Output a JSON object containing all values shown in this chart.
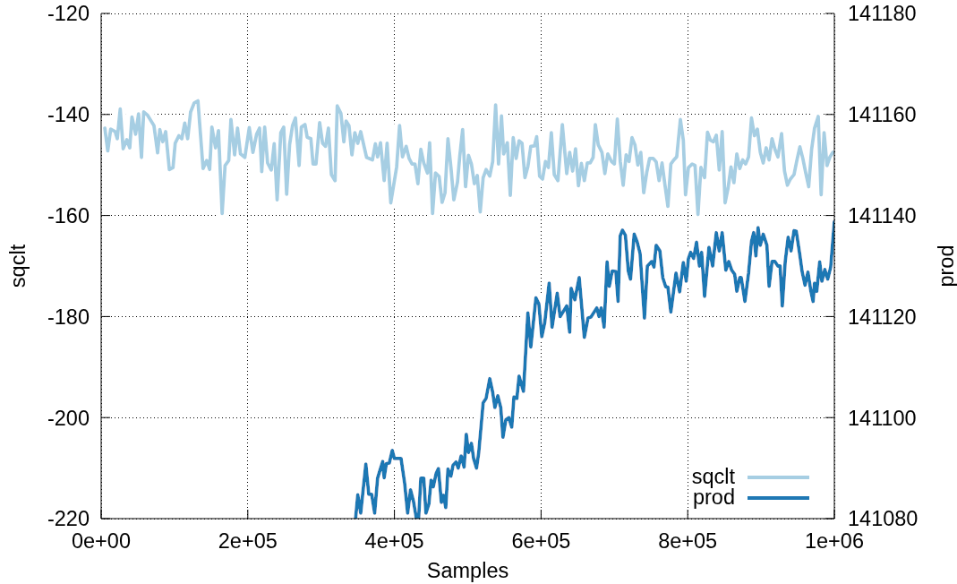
{
  "chart_data": {
    "type": "line",
    "xlabel": "Samples",
    "ylabel": "sqclt",
    "y2label": "prod",
    "xlim": [
      0,
      1000000
    ],
    "xticks": [
      {
        "value": 0,
        "label": "0e+00"
      },
      {
        "value": 200000,
        "label": "2e+05"
      },
      {
        "value": 400000,
        "label": "4e+05"
      },
      {
        "value": 600000,
        "label": "6e+05"
      },
      {
        "value": 800000,
        "label": "8e+05"
      },
      {
        "value": 1000000,
        "label": "1e+06"
      }
    ],
    "ylim": [
      -220,
      -120
    ],
    "yticks": [
      -220,
      -200,
      -180,
      -160,
      -140,
      -120
    ],
    "y2lim": [
      141080,
      141180
    ],
    "y2ticks": [
      141080,
      141100,
      141120,
      141140,
      141160,
      141180
    ],
    "grid": true,
    "legend": "bottom right",
    "marker": "none",
    "line_style": "solid",
    "series": [
      {
        "name": "sqclt",
        "color": "#a6cee3",
        "x": [
          5000,
          9000,
          13000,
          19000,
          22000,
          26000,
          30000,
          35000,
          39000,
          42000,
          47000,
          51000,
          55000,
          58000,
          63000,
          72000,
          77000,
          80000,
          84000,
          88000,
          93000,
          98000,
          101000,
          106000,
          110000,
          114000,
          118000,
          122000,
          127000,
          132000,
          139000,
          144000,
          148000,
          151000,
          156000,
          160000,
          165000,
          169000,
          174000,
          177000,
          182000,
          186000,
          190000,
          196000,
          202000,
          207000,
          212000,
          216000,
          219000,
          223000,
          227000,
          232000,
          236000,
          240000,
          245000,
          249000,
          253000,
          257000,
          261000,
          265000,
          270000,
          273000,
          278000,
          281000,
          286000,
          289000,
          293000,
          298000,
          302000,
          306000,
          310000,
          314000,
          319000,
          322000,
          327000,
          331000,
          334000,
          338000,
          342000,
          346000,
          350000,
          354000,
          362000,
          370000,
          374000,
          377000,
          381000,
          386000,
          390000,
          395000,
          403000,
          407000,
          411000,
          416000,
          420000,
          424000,
          428000,
          432000,
          436000,
          440000,
          445000,
          448000,
          452000,
          456000,
          461000,
          465000,
          469000,
          473000,
          477000,
          481000,
          486000,
          489000,
          493000,
          497000,
          501000,
          505000,
          509000,
          513000,
          517000,
          521000,
          525000,
          530000,
          534000,
          538000,
          542000,
          546000,
          549000,
          554000,
          558000,
          562000,
          566000,
          570000,
          574000,
          578000,
          582000,
          586000,
          591000,
          594000,
          598000,
          602000,
          606000,
          610000,
          614000,
          618000,
          623000,
          629000,
          635000,
          639000,
          643000,
          647000,
          651000,
          655000,
          659000,
          663000,
          667000,
          671000,
          674000,
          678000,
          683000,
          687000,
          691000,
          696000,
          700000,
          704000,
          708000,
          712000,
          716000,
          720000,
          724000,
          728000,
          732000,
          736000,
          740000,
          744000,
          748000,
          753000,
          757000,
          761000,
          765000,
          769000,
          773000,
          777000,
          781000,
          785000,
          790000,
          794000,
          797000,
          801000,
          806000,
          810000,
          814000,
          818000,
          823000,
          827000,
          831000,
          835000,
          839000,
          843000,
          847000,
          851000,
          855000,
          859000,
          863000,
          867000,
          871000,
          875000,
          879000,
          883000,
          887000,
          891000,
          895000,
          899000,
          903000,
          907000,
          911000,
          915000,
          919000,
          923000,
          928000,
          932000,
          936000,
          940000,
          945000,
          949000,
          953000,
          957000,
          961000,
          965000,
          969000,
          973000,
          978000,
          982000,
          986000,
          990000,
          994000,
          998000
        ],
        "values": [
          -142.7,
          -147.2,
          -142.9,
          -143.4,
          -144.8,
          -138.9,
          -146.8,
          -145,
          -146.6,
          -140.5,
          -143.9,
          -139.9,
          -148.5,
          -139.5,
          -140.1,
          -142.2,
          -147.6,
          -143,
          -145.4,
          -143.4,
          -150.9,
          -150.5,
          -145.7,
          -144.2,
          -144.8,
          -141.7,
          -144.8,
          -139.5,
          -137.7,
          -137.3,
          -150.7,
          -149.1,
          -150.9,
          -142.5,
          -146.6,
          -143.2,
          -159.6,
          -150.1,
          -149.1,
          -141,
          -148,
          -142.7,
          -147.8,
          -148.5,
          -142.6,
          -147.5,
          -143.9,
          -142.7,
          -151.3,
          -142.5,
          -149.6,
          -151,
          -145.8,
          -156.9,
          -143.6,
          -142.5,
          -155.8,
          -146,
          -142.2,
          -140.7,
          -150.1,
          -142.5,
          -142,
          -144.5,
          -144.8,
          -149.8,
          -149.8,
          -141.6,
          -145.7,
          -146.3,
          -142.7,
          -151.9,
          -153.1,
          -138.3,
          -139.8,
          -145.4,
          -141.3,
          -142.2,
          -148,
          -143.6,
          -145.7,
          -143.4,
          -148.5,
          -149,
          -145.8,
          -148.4,
          -145.6,
          -153.1,
          -145.7,
          -157.5,
          -150.4,
          -142.2,
          -148.4,
          -146.3,
          -148.7,
          -149.8,
          -149.8,
          -153.7,
          -146.9,
          -149.6,
          -151.6,
          -145.6,
          -159.6,
          -151.6,
          -152.3,
          -157.4,
          -155.5,
          -144.8,
          -150.4,
          -156.9,
          -153.4,
          -148.4,
          -143,
          -154.3,
          -148.1,
          -149.8,
          -153.7,
          -152.1,
          -159.3,
          -152.5,
          -150.9,
          -152.2,
          -149.3,
          -138.1,
          -149.8,
          -140.3,
          -147.8,
          -145.6,
          -156,
          -144.6,
          -148.7,
          -145.2,
          -145.7,
          -152.5,
          -150.3,
          -146.3,
          -146.2,
          -144.4,
          -152.2,
          -152.8,
          -149.3,
          -150.5,
          -143.6,
          -151.9,
          -153.1,
          -142,
          -151.7,
          -147.5,
          -151.2,
          -146.8,
          -154.1,
          -149.7,
          -153.1,
          -149.6,
          -149.6,
          -148.5,
          -142,
          -146,
          -147.5,
          -151.7,
          -147.8,
          -149.3,
          -149.8,
          -140.9,
          -149.3,
          -154,
          -148,
          -149.3,
          -144.6,
          -146,
          -150,
          -147.5,
          -155.5,
          -151.6,
          -148.7,
          -148.7,
          -149.4,
          -153.1,
          -149.6,
          -154,
          -158.2,
          -149.8,
          -149,
          -148.4,
          -141,
          -145.1,
          -155.9,
          -150.5,
          -149.8,
          -150.1,
          -159.8,
          -150.5,
          -152.5,
          -143.5,
          -145.1,
          -145.4,
          -144.1,
          -151,
          -143.4,
          -157.5,
          -154.6,
          -150.4,
          -153.5,
          -147.8,
          -150.7,
          -149,
          -149.8,
          -148.4,
          -140.7,
          -144.2,
          -142.9,
          -147.5,
          -149.6,
          -146.6,
          -149,
          -144.8,
          -146.9,
          -148.4,
          -143.8,
          -151.2,
          -154,
          -152.8,
          -151.9,
          -149,
          -146.4,
          -148.7,
          -151.6,
          -154.3,
          -146.9,
          -142.7,
          -140.4,
          -155.9,
          -143.6,
          -150.1,
          -148.4,
          -147.5
        ]
      },
      {
        "name": "prod",
        "color": "#1f78b4",
        "axis": "y2",
        "x": [
          347000,
          350000,
          354000,
          361000,
          365000,
          369000,
          373000,
          377000,
          381000,
          384000,
          386000,
          389000,
          393000,
          397000,
          400000,
          405000,
          409000,
          414000,
          418000,
          422000,
          426000,
          430000,
          433000,
          436000,
          440000,
          443000,
          447000,
          450000,
          453000,
          457000,
          460000,
          464000,
          467000,
          470000,
          473000,
          477000,
          480000,
          484000,
          487000,
          491000,
          495000,
          498000,
          501000,
          505000,
          508000,
          512000,
          515000,
          521000,
          525000,
          530000,
          534000,
          537000,
          541000,
          545000,
          548000,
          552000,
          556000,
          560000,
          563000,
          567000,
          570000,
          576000,
          582000,
          586000,
          593000,
          597000,
          601000,
          605000,
          611000,
          615000,
          622000,
          626000,
          635000,
          639000,
          641000,
          646000,
          652000,
          659000,
          664000,
          668000,
          676000,
          679000,
          682000,
          686000,
          690000,
          693000,
          697000,
          702000,
          705000,
          708000,
          711000,
          715000,
          719000,
          722000,
          727000,
          731000,
          735000,
          741000,
          745000,
          751000,
          754000,
          757000,
          762000,
          766000,
          770000,
          773000,
          777000,
          784000,
          789000,
          794000,
          798000,
          801000,
          804000,
          808000,
          812000,
          816000,
          819000,
          823000,
          829000,
          834000,
          839000,
          843000,
          847000,
          852000,
          856000,
          860000,
          864000,
          867000,
          871000,
          873000,
          878000,
          883000,
          887000,
          890000,
          893000,
          896000,
          899000,
          903000,
          908000,
          911000,
          915000,
          919000,
          923000,
          926000,
          929000,
          933000,
          937000,
          941000,
          945000,
          948000,
          953000,
          956000,
          960000,
          964000,
          968000,
          971000,
          973000,
          976000,
          980000,
          983000,
          987000,
          991000,
          995000,
          1000000
        ],
        "values": [
          141080,
          141084.7,
          141081.1,
          141090.8,
          141084.8,
          141084.8,
          141081.1,
          141088,
          141089.9,
          141091.3,
          141088.1,
          141090.9,
          141091,
          141093.5,
          141091.9,
          141091.9,
          141091.9,
          141086.9,
          141081.1,
          141085.7,
          141083.4,
          141080,
          141080,
          141088,
          141088,
          141081.1,
          141082.9,
          141087.6,
          141086.3,
          141089,
          141089.9,
          141083.2,
          141084.6,
          141082.2,
          141089.8,
          141088.4,
          141090.6,
          141091.2,
          141090,
          141092.4,
          141090.2,
          141096.7,
          141093.1,
          141094.9,
          141091.9,
          141090,
          141093.1,
          141102.9,
          141103.8,
          141107.7,
          141105,
          141102,
          141104.3,
          141102,
          141096.1,
          141099.6,
          141100,
          141098.1,
          141104.1,
          141103.8,
          141108.2,
          141105.2,
          141120.7,
          141114,
          141123.7,
          141122.5,
          141116,
          141118.8,
          141126.6,
          141117.9,
          141124.6,
          141120,
          141122.1,
          141116.9,
          141125.6,
          141123.3,
          141127.7,
          141115.9,
          141119.7,
          141119.9,
          141121.7,
          141120,
          141121.7,
          141117.9,
          141130.8,
          141126,
          141129,
          141128.9,
          141123,
          141136,
          141137.1,
          141136.1,
          141129,
          141127.4,
          141136.3,
          141134.8,
          141132.5,
          141119.7,
          141130,
          141130.9,
          141129.8,
          141134.1,
          141133,
          141127.7,
          141125.9,
          141125.8,
          141120.9,
          141128.6,
          141124.9,
          141130.7,
          141127,
          141131.5,
          141132.7,
          141131.5,
          141134.7,
          141130,
          141132.7,
          141124,
          141133.7,
          141130,
          141136.6,
          141133,
          141136.6,
          141129.2,
          141130.9,
          141129.2,
          141128.4,
          141125,
          141127.7,
          141127.7,
          141123,
          141128.6,
          141134.9,
          141136.6,
          141132,
          141137.6,
          141134.1,
          141136.3,
          141134.1,
          141126,
          141130.9,
          141130.9,
          141130,
          141130,
          141122.1,
          141130.9,
          141135.7,
          141133,
          141137,
          141136.9,
          141132.1,
          141128.9,
          141126.2,
          141128.8,
          141125,
          141123,
          141126.6,
          141125,
          141130.8,
          141127,
          141129.3,
          141127.4,
          141129.8,
          141138.8
        ]
      }
    ]
  }
}
